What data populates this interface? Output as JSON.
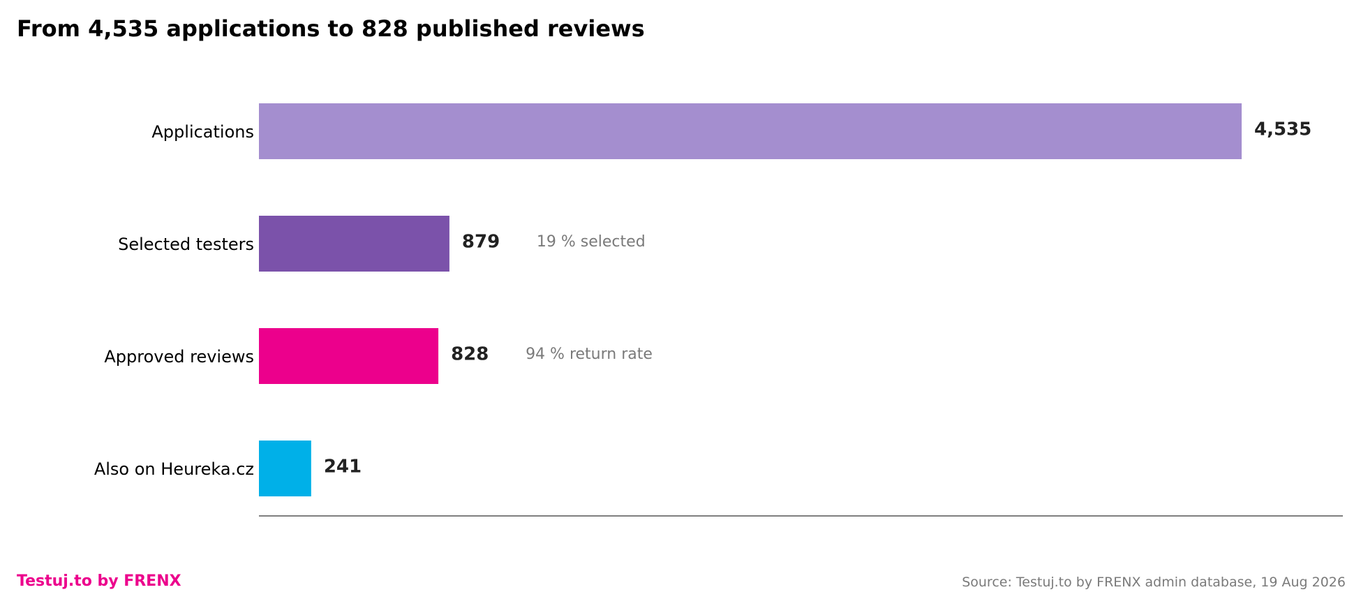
{
  "colors": {
    "brand": "#ec008c",
    "axis": "#555555",
    "label": "#000000",
    "value": "#222222",
    "note": "#7a7a7a"
  },
  "footer": {
    "brand": "Testuj.to by FRENX",
    "source": "Source: Testuj.to by FRENX admin database, 19 Aug 2026"
  },
  "chart_data": {
    "type": "bar",
    "orientation": "horizontal",
    "title": "From 4,535 applications to 828 published reviews",
    "categories": [
      "Applications",
      "Selected testers",
      "Approved reviews",
      "Also on Heureka.cz"
    ],
    "values": [
      4535,
      879,
      828,
      241
    ],
    "value_labels": [
      "4,535",
      "879",
      "828",
      "241"
    ],
    "annotations": [
      "",
      "19 % selected",
      "94 % return rate",
      ""
    ],
    "colors": [
      "#a48ecf",
      "#7b52aa",
      "#ec008c",
      "#00b0e8"
    ],
    "xlim": [
      0,
      5000
    ],
    "grid": false,
    "xlabel": "",
    "ylabel": ""
  }
}
